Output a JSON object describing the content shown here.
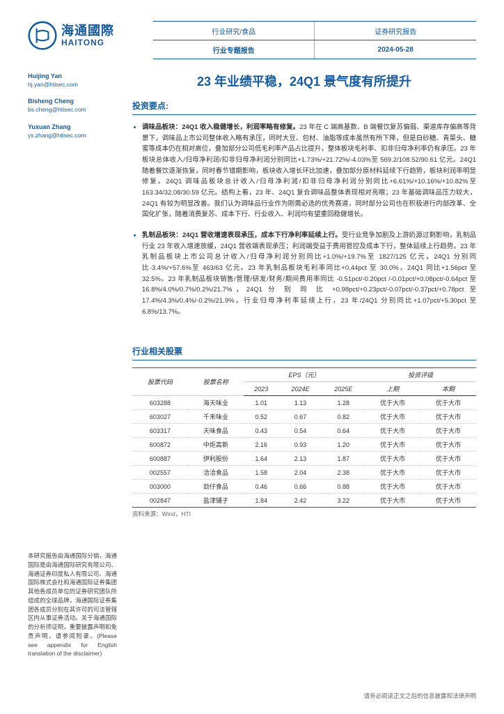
{
  "header": {
    "logo_cn": "海通國際",
    "logo_en": "HAITONG",
    "logo_stroke": "#165a9c",
    "category_left": "行业研究/食品",
    "category_right": "证券研究报告",
    "subtitle_left": "行业专题报告",
    "date": "2024-05-28"
  },
  "analysts": [
    {
      "name": "Huijing Yan",
      "email": "hj.yan@htisec.com"
    },
    {
      "name": "Bisheng Cheng",
      "email": "bs.cheng@htisec.com"
    },
    {
      "name": "Yuxuan Zhang",
      "email": "yx.zhang@htisec.com"
    }
  ],
  "title": "23 年业绩平稳，24Q1 景气度有所提升",
  "section_label": "投资要点:",
  "bullets": [
    {
      "lead": "调味品板块：24Q1 收入稳健增长，利润率略有修复。",
      "body": "23 年在 C 端高基数、B 端餐饮复苏偏弱、渠道库存偏高等背景下，调味品上市公司整体收入略有承压，同时大豆、包材、油脂等成本虽然有所下降，但是白砂糖、青菜头、糖蜜等成本仍在相对高位，叠加部分公司低毛利率产品占比提升，整体板块毛利率、扣非归母净利率仍有承压。23 年板块总体收入/归母净利润/扣非归母净利润分别同比+1.73%/+21.72%/-4.03%至 569.2/108.52/90.61 亿元。24Q1 随着餐饮逐渐恢复，同时春节错期影响，板块收入增长环比加速，叠加部分原材料延续下行趋势，板块利润率明显修复。24Q1 调味品板块总计收入/归母净利润/扣非归母净利润分别同比+6.61%/+10.16%/+10.82%至 163.34/32.08/30.59 亿元。结构上看，23 年、24Q1 复合调味品整体表现相对亮眼；23 年基础调味品压力较大，24Q1 有较为明显改善。我们认为调味品行业作为刚需必选的优秀赛道，同时部分公司也在积极进行内部改革、全国化扩张，随着消费复苏、成本下行、行业收入、利润均有望重回稳健增长。"
    },
    {
      "lead": "乳制品板块：24Q1 营收增速表现承压，成本下行净利率延续上行。",
      "body": "受行业竞争加剧及上游奶源过剩影响，乳制品行业 23 年收入增速放缓，24Q1 营收端表现承压；利润端受益于费用管控及成本下行，整体延续上行趋势。23 年乳制品板块上市公司总计收入/归母净利润分别同比+1.0%/+19.7%至 1827/125 亿元，24Q1 分别同比-3.4%/+57.6%至 463/63 亿元。23 年乳制品板块毛利率同比+0.44pct 至 30.0%，24Q1 同比+1.56pct 至 32.5%。23 年乳制品板块销售/管理/研发/财务/期间费用率同比 -0.51pct/-0.20pct /-0.01pct/+0.08pct/-0.64pct 至 16.8%/4.0%/0.7%/0.2%/21.7%，24Q1 分 别 同 比 +0.98pct/+0.23pct/-0.07pct/-0.37pct/+0.78pct 至 17.4%/4.3%/0.4%/-0.2%/21.9%。行业归母净利率延续上行，23 年/24Q1 分别同比+1.07pct/+5.30pct 至 6.8%/13.7%。"
    }
  ],
  "table": {
    "title": "行业相关股票",
    "group_headers": {
      "code": "股票代码",
      "name": "股票名称",
      "eps": "EPS（元）",
      "rating": "投资评级"
    },
    "sub_headers": {
      "y2023": "2023",
      "y2024e": "2024E",
      "y2025e": "2025E",
      "prev": "上期",
      "curr": "本期"
    },
    "rows": [
      {
        "code": "603288",
        "name": "海天味业",
        "y2023": "1.01",
        "y2024e": "1.13",
        "y2025e": "1.28",
        "prev": "优于大市",
        "curr": "优于大市"
      },
      {
        "code": "603027",
        "name": "千禾味业",
        "y2023": "0.52",
        "y2024e": "0.67",
        "y2025e": "0.82",
        "prev": "优于大市",
        "curr": "优于大市"
      },
      {
        "code": "603317",
        "name": "天味食品",
        "y2023": "0.43",
        "y2024e": "0.54",
        "y2025e": "0.64",
        "prev": "优于大市",
        "curr": "优于大市"
      },
      {
        "code": "600872",
        "name": "中炬高新",
        "y2023": "2.16",
        "y2024e": "0.93",
        "y2025e": "1.20",
        "prev": "优于大市",
        "curr": "优于大市"
      },
      {
        "code": "600887",
        "name": "伊利股份",
        "y2023": "1.64",
        "y2024e": "2.13",
        "y2025e": "1.87",
        "prev": "优于大市",
        "curr": "优于大市"
      },
      {
        "code": "002557",
        "name": "洽洽食品",
        "y2023": "1.58",
        "y2024e": "2.04",
        "y2025e": "2.38",
        "prev": "优于大市",
        "curr": "优于大市"
      },
      {
        "code": "003000",
        "name": "劲仔食品",
        "y2023": "0.46",
        "y2024e": "0.66",
        "y2025e": "0.88",
        "prev": "优于大市",
        "curr": "优于大市"
      },
      {
        "code": "002847",
        "name": "盐津铺子",
        "y2023": "1.84",
        "y2024e": "2.42",
        "y2025e": "3.22",
        "prev": "优于大市",
        "curr": "优于大市"
      }
    ],
    "source": "资料来源：Wind，HTI"
  },
  "left_bottom_note": "本研究报告由海通国际分销，海通国际是由海通国际研究有限公司、海通证券印度私人有限公司、海通国际株式会社和海通国际证券集团其他各成员单位的证券研究团队所组成的全球品牌，海通国际证券集团各成员分别在其许可的司法管辖区内从事证券活动。关于海通国际的分析师证明，重要披露声明和免责声明，请参阅附录。(Please see appendix for English translation of the disclaimer)",
  "footer": "请务必阅读正文之后的信息披露和法律声明"
}
